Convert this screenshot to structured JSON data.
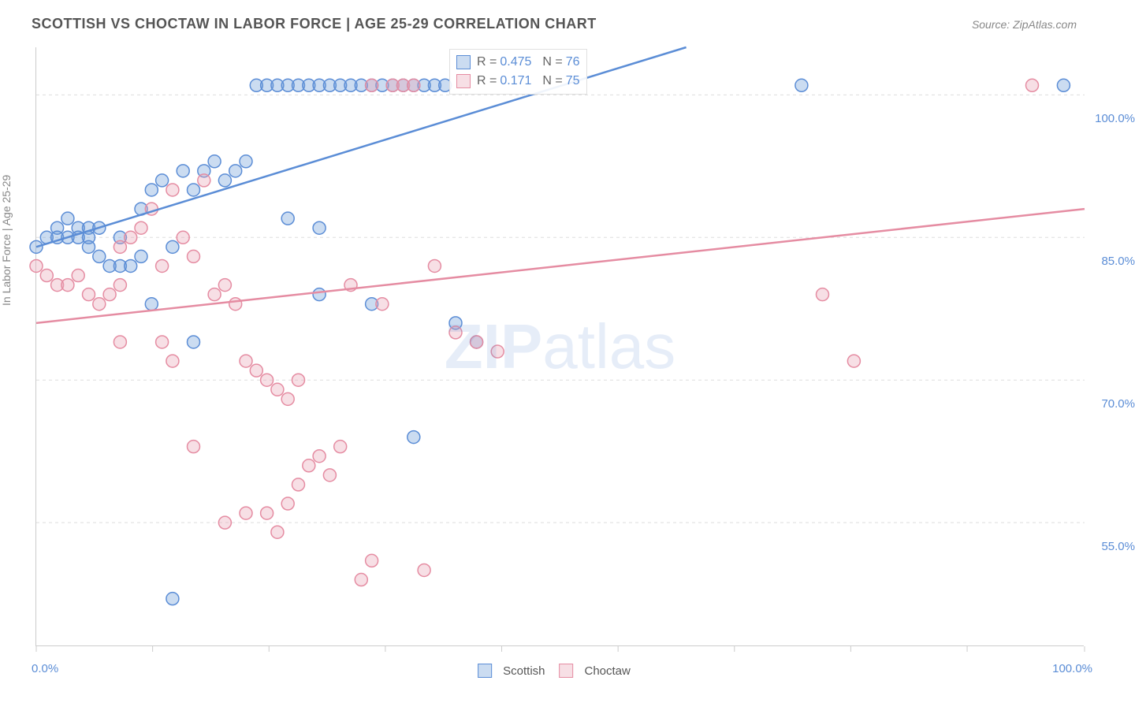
{
  "title": "SCOTTISH VS CHOCTAW IN LABOR FORCE | AGE 25-29 CORRELATION CHART",
  "source": "Source: ZipAtlas.com",
  "ylabel": "In Labor Force | Age 25-29",
  "chart": {
    "type": "scatter",
    "xlim": [
      0,
      100
    ],
    "ylim": [
      42,
      105
    ],
    "xtick_positions": [
      0,
      11.1,
      22.2,
      33.3,
      44.4,
      55.5,
      66.6,
      77.7,
      88.8,
      100
    ],
    "xtick_labels_shown": {
      "0": "0.0%",
      "100": "100.0%"
    },
    "ytick_positions": [
      55,
      70,
      85,
      100
    ],
    "ytick_labels": [
      "55.0%",
      "70.0%",
      "85.0%",
      "100.0%"
    ],
    "grid_color": "#dddddd",
    "tick_color": "#cccccc",
    "background_color": "#ffffff",
    "series": [
      {
        "name": "Scottish",
        "color": "#6b9bd8",
        "fill": "rgba(107,155,216,0.35)",
        "stroke": "#5b8dd6",
        "r_value": "0.475",
        "n_value": "76",
        "trendline": {
          "x1": 0,
          "y1": 84,
          "x2": 62,
          "y2": 105,
          "stroke_width": 2.5
        },
        "marker_radius": 8,
        "points": [
          [
            0,
            84
          ],
          [
            1,
            85
          ],
          [
            2,
            86
          ],
          [
            2,
            85
          ],
          [
            3,
            85
          ],
          [
            3,
            87
          ],
          [
            4,
            86
          ],
          [
            4,
            85
          ],
          [
            5,
            86
          ],
          [
            5,
            85
          ],
          [
            5,
            84
          ],
          [
            6,
            86
          ],
          [
            6,
            83
          ],
          [
            7,
            82
          ],
          [
            8,
            85
          ],
          [
            8,
            82
          ],
          [
            9,
            82
          ],
          [
            10,
            83
          ],
          [
            10,
            88
          ],
          [
            11,
            90
          ],
          [
            12,
            91
          ],
          [
            11,
            78
          ],
          [
            13,
            84
          ],
          [
            14,
            92
          ],
          [
            15,
            74
          ],
          [
            15,
            90
          ],
          [
            13,
            47
          ],
          [
            16,
            92
          ],
          [
            17,
            93
          ],
          [
            18,
            91
          ],
          [
            19,
            92
          ],
          [
            20,
            93
          ],
          [
            21,
            101
          ],
          [
            22,
            101
          ],
          [
            23,
            101
          ],
          [
            24,
            101
          ],
          [
            25,
            101
          ],
          [
            26,
            101
          ],
          [
            27,
            101
          ],
          [
            28,
            101
          ],
          [
            29,
            101
          ],
          [
            27,
            86
          ],
          [
            30,
            101
          ],
          [
            31,
            101
          ],
          [
            32,
            101
          ],
          [
            33,
            101
          ],
          [
            34,
            101
          ],
          [
            35,
            101
          ],
          [
            36,
            101
          ],
          [
            37,
            101
          ],
          [
            38,
            101
          ],
          [
            39,
            101
          ],
          [
            24,
            87
          ],
          [
            27,
            79
          ],
          [
            32,
            78
          ],
          [
            36,
            64
          ],
          [
            40,
            76
          ],
          [
            42,
            74
          ],
          [
            73,
            101
          ],
          [
            98,
            101
          ]
        ]
      },
      {
        "name": "Choctaw",
        "color": "#e8a3b4",
        "fill": "rgba(232,163,180,0.35)",
        "stroke": "#e58ca2",
        "r_value": "0.171",
        "n_value": "75",
        "trendline": {
          "x1": 0,
          "y1": 76,
          "x2": 100,
          "y2": 88,
          "stroke_width": 2.5
        },
        "marker_radius": 8,
        "points": [
          [
            0,
            82
          ],
          [
            1,
            81
          ],
          [
            2,
            80
          ],
          [
            3,
            80
          ],
          [
            4,
            81
          ],
          [
            5,
            79
          ],
          [
            6,
            78
          ],
          [
            7,
            79
          ],
          [
            8,
            80
          ],
          [
            8,
            84
          ],
          [
            9,
            85
          ],
          [
            10,
            86
          ],
          [
            11,
            88
          ],
          [
            12,
            82
          ],
          [
            13,
            90
          ],
          [
            14,
            85
          ],
          [
            15,
            83
          ],
          [
            16,
            91
          ],
          [
            17,
            79
          ],
          [
            18,
            80
          ],
          [
            19,
            78
          ],
          [
            20,
            72
          ],
          [
            21,
            71
          ],
          [
            22,
            70
          ],
          [
            23,
            69
          ],
          [
            24,
            68
          ],
          [
            25,
            70
          ],
          [
            8,
            74
          ],
          [
            12,
            74
          ],
          [
            13,
            72
          ],
          [
            15,
            63
          ],
          [
            18,
            55
          ],
          [
            20,
            56
          ],
          [
            22,
            56
          ],
          [
            23,
            54
          ],
          [
            24,
            57
          ],
          [
            25,
            59
          ],
          [
            26,
            61
          ],
          [
            27,
            62
          ],
          [
            28,
            60
          ],
          [
            29,
            63
          ],
          [
            30,
            80
          ],
          [
            31,
            49
          ],
          [
            32,
            51
          ],
          [
            33,
            78
          ],
          [
            34,
            101
          ],
          [
            35,
            101
          ],
          [
            36,
            101
          ],
          [
            37,
            50
          ],
          [
            38,
            82
          ],
          [
            32,
            101
          ],
          [
            40,
            75
          ],
          [
            42,
            74
          ],
          [
            44,
            73
          ],
          [
            75,
            79
          ],
          [
            78,
            72
          ],
          [
            95,
            101
          ]
        ]
      }
    ]
  },
  "legend_top": {
    "r_label": "R =",
    "n_label": "N ="
  },
  "legend_bottom": [
    {
      "swatch_fill": "rgba(107,155,216,0.35)",
      "swatch_stroke": "#5b8dd6",
      "label": "Scottish"
    },
    {
      "swatch_fill": "rgba(232,163,180,0.35)",
      "swatch_stroke": "#e58ca2",
      "label": "Choctaw"
    }
  ],
  "watermark": {
    "part1": "ZIP",
    "part2": "atlas"
  }
}
